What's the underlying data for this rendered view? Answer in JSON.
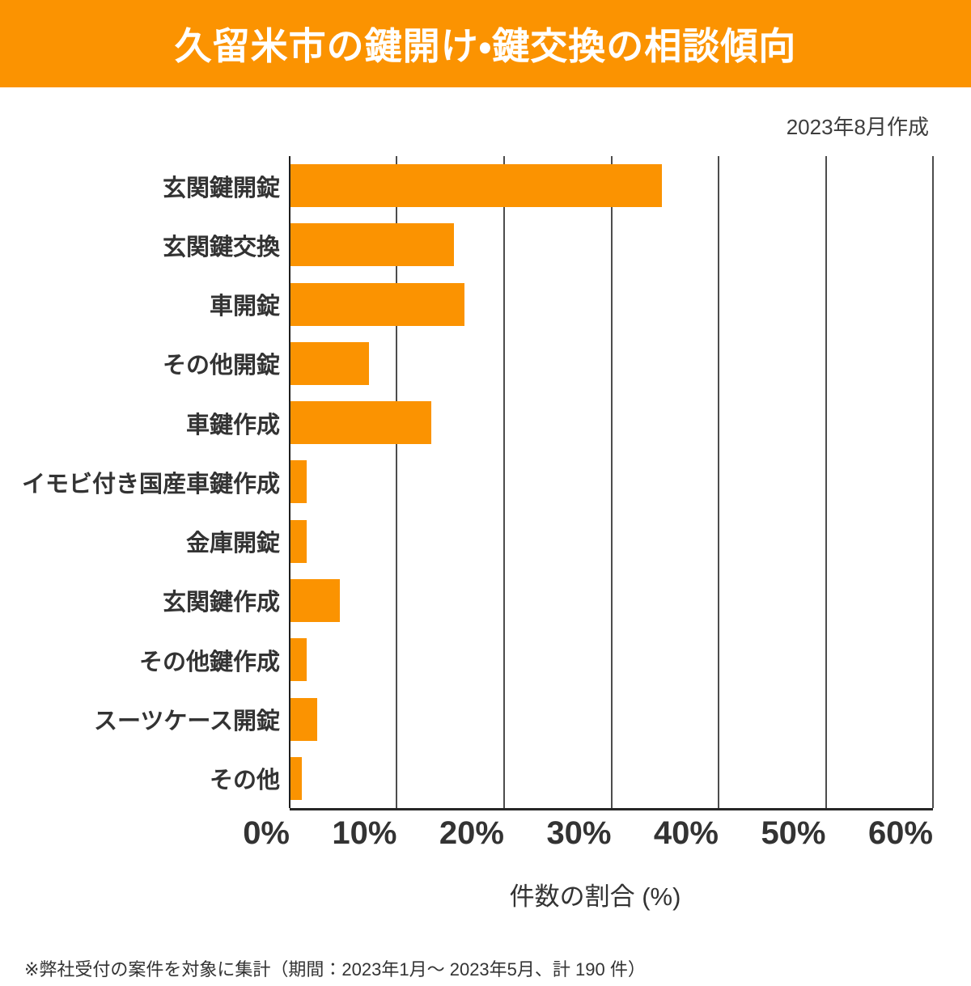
{
  "header": {
    "title": "久留米市の鍵開け・鍵交換の相談傾向",
    "created_date": "2023年8月作成"
  },
  "chart_data": {
    "type": "bar",
    "orientation": "horizontal",
    "title": "久留米市の鍵開け・鍵交換の相談傾向",
    "categories": [
      "玄関鍵開錠",
      "玄関鍵交換",
      "車開錠",
      "その他開錠",
      "車鍵作成",
      "イモビ付き国産車鍵作成",
      "金庫開錠",
      "玄関鍵作成",
      "その他鍵作成",
      "スーツケース開錠",
      "その他"
    ],
    "values": [
      34.7,
      15.3,
      16.3,
      7.4,
      13.2,
      1.6,
      1.6,
      4.7,
      1.6,
      2.6,
      1.1
    ],
    "unit": "%",
    "xlabel": "件数の割合 (%)",
    "xlim": [
      0,
      60
    ],
    "xticks": [
      0,
      10,
      20,
      30,
      40,
      50,
      60
    ],
    "xtick_labels": [
      "0%",
      "10%",
      "20%",
      "30%",
      "40%",
      "50%",
      "60%"
    ],
    "grid": true,
    "legend": false,
    "bar_color": "#FB9301"
  },
  "footer": {
    "note": "※弊社受付の案件を対象に集計（期間：2023年1月～ 2023年5月、計 190 件）"
  },
  "colors": {
    "accent": "#FB9301",
    "banner_background": "#FB9301",
    "title_text": "#FFFFFF",
    "text": "#333333",
    "gridline": "#4D4D4D",
    "axis": "#262626"
  }
}
